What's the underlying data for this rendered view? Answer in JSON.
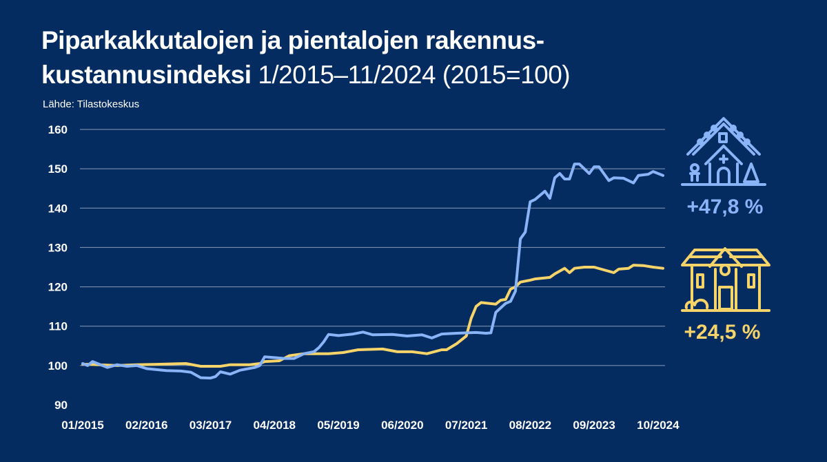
{
  "header": {
    "title_bold_line1": "Piparkakkutalojen ja pientalojen rakennus-",
    "title_bold_line2": "kustannusindeksi",
    "title_regular": "1/2015–11/2024 (2015=100)",
    "source": "Lähde: Tilastokeskus"
  },
  "colors": {
    "background": "#052c61",
    "gingerbread": "#8ab4f8",
    "house": "#f7d469",
    "grid": "#8a9cb8"
  },
  "legend": [
    {
      "icon": "gingerbread-house-icon",
      "change": "+47,8 %"
    },
    {
      "icon": "detached-house-icon",
      "change": "+24,5 %"
    }
  ],
  "chart_data": {
    "type": "line",
    "title": "Piparkakkutalojen ja pientalojen rakennuskustannusindeksi 1/2015–11/2024 (2015=100)",
    "x_unit": "months since 01/2015",
    "xlim": [
      0,
      118
    ],
    "ylim": [
      90,
      160
    ],
    "yticks": [
      90,
      100,
      110,
      120,
      130,
      140,
      150,
      160
    ],
    "xticks": [
      {
        "m": 0,
        "label": "01/2015"
      },
      {
        "m": 13,
        "label": "02/2016"
      },
      {
        "m": 26,
        "label": "03/2017"
      },
      {
        "m": 39,
        "label": "04/2018"
      },
      {
        "m": 52,
        "label": "05/2019"
      },
      {
        "m": 65,
        "label": "06/2020"
      },
      {
        "m": 78,
        "label": "07/2021"
      },
      {
        "m": 91,
        "label": "08/2022"
      },
      {
        "m": 104,
        "label": "09/2023"
      },
      {
        "m": 117,
        "label": "10/2024"
      }
    ],
    "grid": true,
    "series": [
      {
        "name": "Piparkakkutalot",
        "color_key": "gingerbread",
        "points": [
          [
            0,
            100.5
          ],
          [
            1,
            100
          ],
          [
            2,
            101
          ],
          [
            5,
            99.5
          ],
          [
            7,
            100.2
          ],
          [
            9,
            99.8
          ],
          [
            11,
            100
          ],
          [
            13,
            99.2
          ],
          [
            17,
            98.7
          ],
          [
            20,
            98.6
          ],
          [
            22,
            98.3
          ],
          [
            24,
            96.9
          ],
          [
            26,
            96.8
          ],
          [
            27,
            97.2
          ],
          [
            28,
            98.4
          ],
          [
            30,
            97.8
          ],
          [
            32,
            98.8
          ],
          [
            35,
            99.5
          ],
          [
            36,
            100
          ],
          [
            37,
            102.2
          ],
          [
            39,
            102
          ],
          [
            41,
            101.8
          ],
          [
            43,
            101.8
          ],
          [
            45,
            103
          ],
          [
            47,
            103.5
          ],
          [
            48,
            104.5
          ],
          [
            49,
            106
          ],
          [
            50,
            107.9
          ],
          [
            52,
            107.6
          ],
          [
            55,
            108
          ],
          [
            57,
            108.5
          ],
          [
            59,
            107.8
          ],
          [
            63,
            107.9
          ],
          [
            66,
            107.5
          ],
          [
            69,
            107.8
          ],
          [
            71,
            107
          ],
          [
            73,
            108
          ],
          [
            76,
            108.2
          ],
          [
            80,
            108.4
          ],
          [
            82,
            108.2
          ],
          [
            83,
            108.3
          ],
          [
            84,
            113.5
          ],
          [
            86,
            115.8
          ],
          [
            87,
            116.3
          ],
          [
            88,
            118.9
          ],
          [
            89,
            132.2
          ],
          [
            90,
            133.9
          ],
          [
            91,
            141.6
          ],
          [
            92,
            142.2
          ],
          [
            94,
            144.3
          ],
          [
            95,
            142.5
          ],
          [
            96,
            147.7
          ],
          [
            97,
            148.8
          ],
          [
            98,
            147.4
          ],
          [
            99,
            147.4
          ],
          [
            100,
            151.2
          ],
          [
            101,
            151.2
          ],
          [
            103,
            148.8
          ],
          [
            104,
            150.5
          ],
          [
            105,
            150.5
          ],
          [
            107,
            147
          ],
          [
            108,
            147.7
          ],
          [
            110,
            147.6
          ],
          [
            112,
            146.4
          ],
          [
            113,
            148.3
          ],
          [
            115,
            148.6
          ],
          [
            116,
            149.3
          ],
          [
            118,
            148.3
          ]
        ],
        "change": "+47,8 %"
      },
      {
        "name": "Pientalot",
        "color_key": "house",
        "points": [
          [
            0,
            100.3
          ],
          [
            1,
            100.3
          ],
          [
            7,
            100
          ],
          [
            11,
            100.2
          ],
          [
            15,
            100.3
          ],
          [
            21,
            100.5
          ],
          [
            24,
            99.8
          ],
          [
            28,
            99.8
          ],
          [
            30,
            100.2
          ],
          [
            34,
            100.2
          ],
          [
            36,
            100.5
          ],
          [
            37,
            101
          ],
          [
            40,
            101.2
          ],
          [
            42,
            102.5
          ],
          [
            45,
            103
          ],
          [
            50,
            103
          ],
          [
            53,
            103.3
          ],
          [
            56,
            104
          ],
          [
            61,
            104.2
          ],
          [
            64,
            103.5
          ],
          [
            67,
            103.5
          ],
          [
            70,
            103
          ],
          [
            73,
            104
          ],
          [
            74,
            104
          ],
          [
            76,
            105.5
          ],
          [
            78,
            107.5
          ],
          [
            79,
            112
          ],
          [
            80,
            115
          ],
          [
            81,
            116
          ],
          [
            84,
            115.6
          ],
          [
            85,
            116.6
          ],
          [
            86,
            116.8
          ],
          [
            87,
            119.4
          ],
          [
            88,
            120
          ],
          [
            89,
            121.2
          ],
          [
            91,
            121.7
          ],
          [
            92,
            122
          ],
          [
            95,
            122.4
          ],
          [
            96,
            123.3
          ],
          [
            98,
            124.7
          ],
          [
            99,
            123.6
          ],
          [
            100,
            124.7
          ],
          [
            102,
            125
          ],
          [
            104,
            125
          ],
          [
            106,
            124.3
          ],
          [
            108,
            123.6
          ],
          [
            109,
            124.5
          ],
          [
            111,
            124.7
          ],
          [
            112,
            125.5
          ],
          [
            114,
            125.4
          ],
          [
            116,
            125
          ],
          [
            118,
            124.7
          ]
        ],
        "change": "+24,5 %"
      }
    ]
  }
}
